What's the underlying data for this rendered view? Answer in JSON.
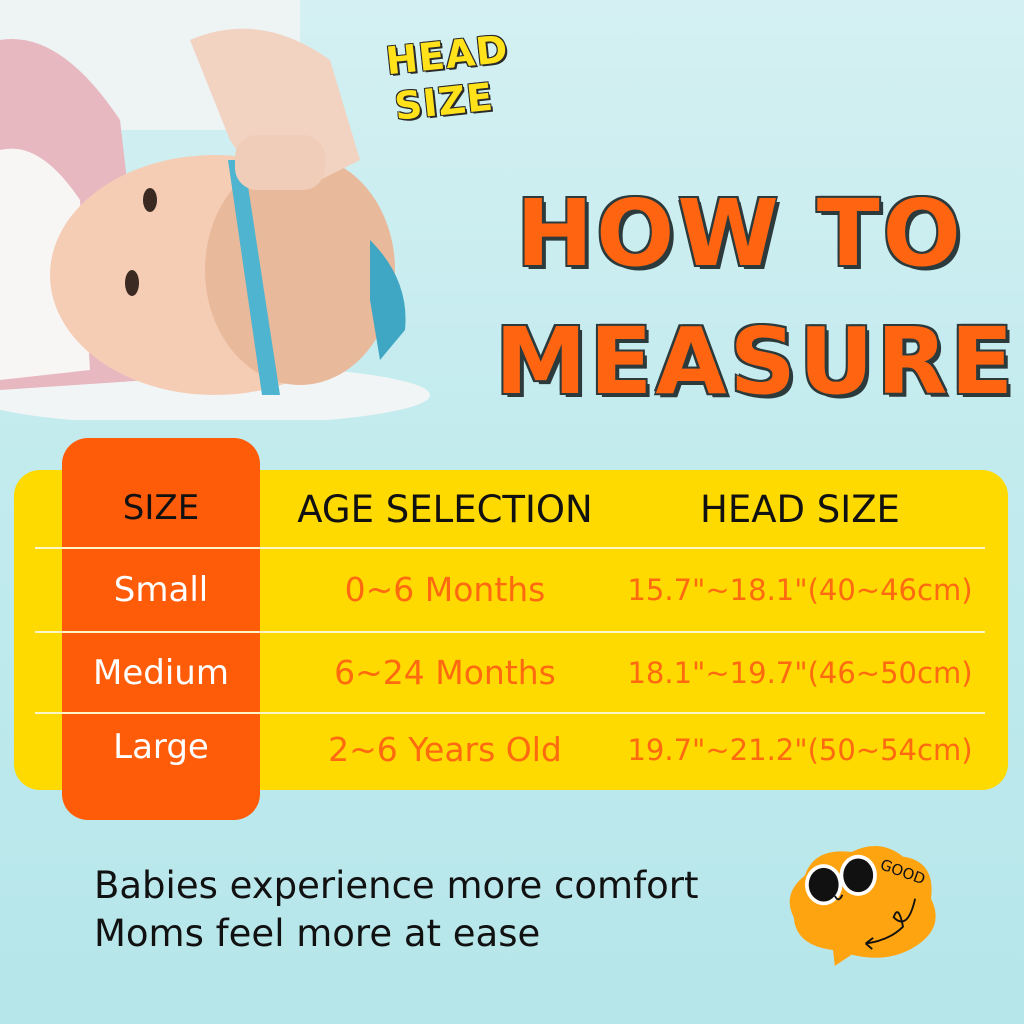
{
  "badge": {
    "line1": "HEAD",
    "line2": "SIZE"
  },
  "title": {
    "line1": "HOW TO",
    "line2": "MEASURE"
  },
  "table": {
    "headers": [
      "SIZE",
      "AGE SELECTION",
      "HEAD SIZE"
    ],
    "rows": [
      {
        "size": "Small",
        "age": "0~6 Months",
        "head": "15.7\"~18.1\"(40~46cm)"
      },
      {
        "size": "Medium",
        "age": "6~24 Months",
        "head": "18.1\"~19.7\"(46~50cm)"
      },
      {
        "size": "Large",
        "age": "2~6 Years Old",
        "head": "19.7\"~21.2\"(50~54cm)"
      }
    ]
  },
  "tagline": {
    "line1": "Babies experience more comfort",
    "line2": "Moms feel more at ease"
  },
  "sticker": {
    "text": "GOOD"
  },
  "colors": {
    "accent_orange": "#ff5c0a",
    "table_yellow": "#ffda00",
    "background": "#c2ebee"
  }
}
